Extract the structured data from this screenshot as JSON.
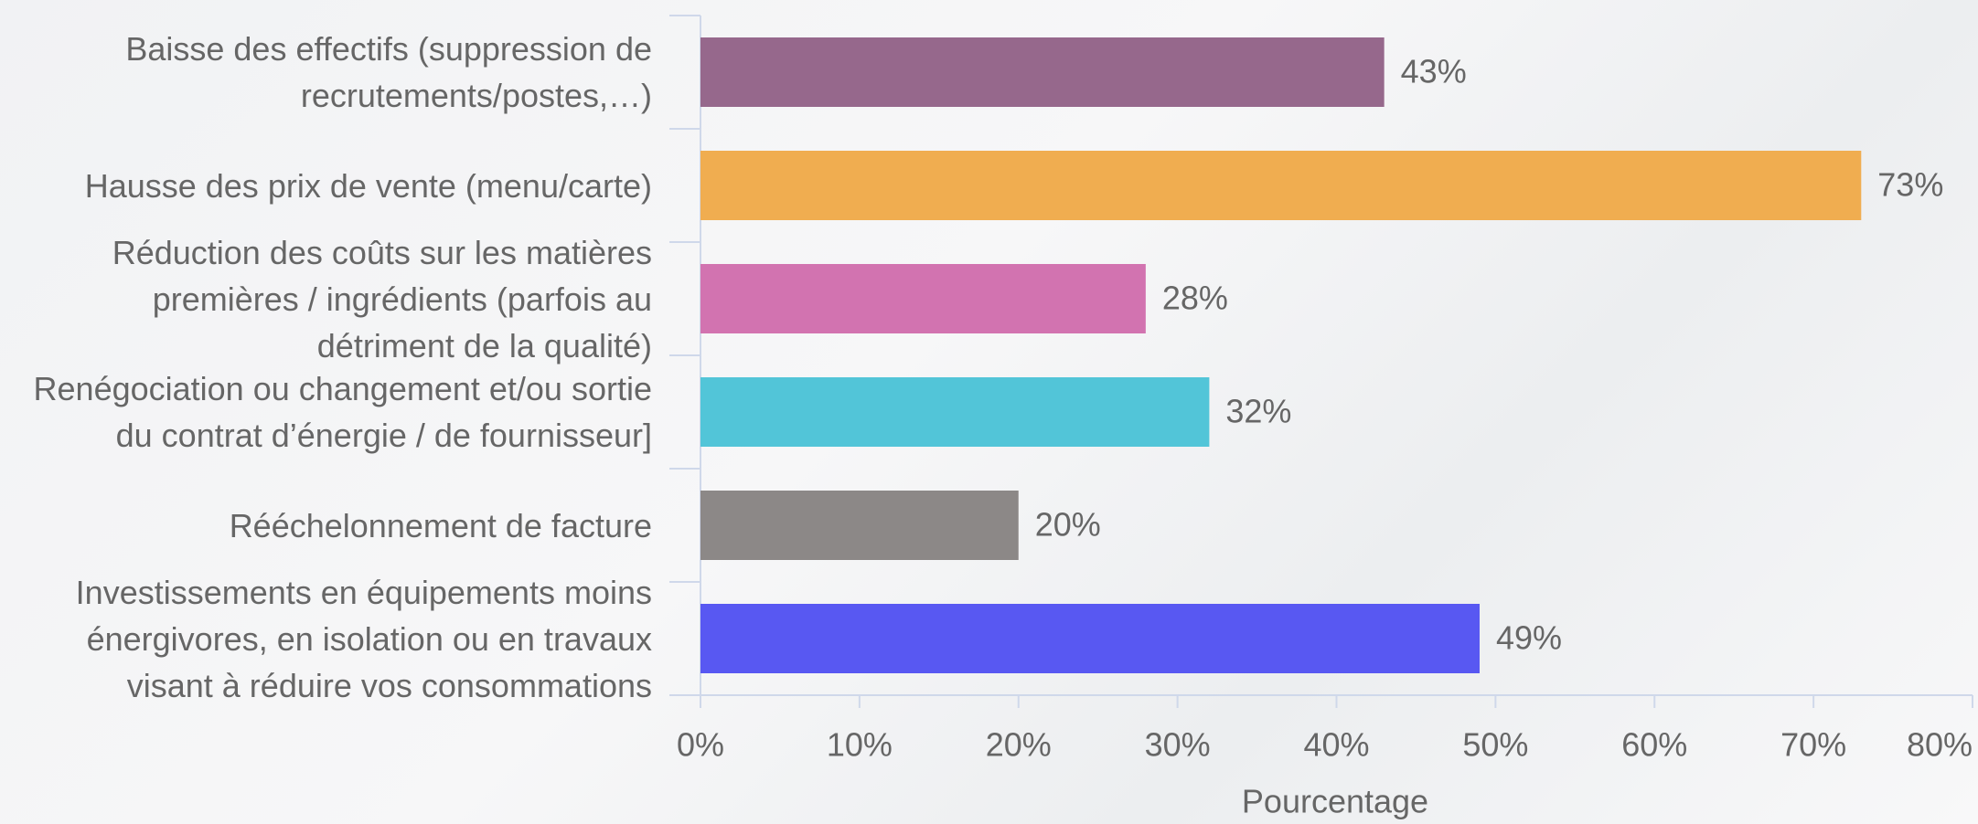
{
  "chart_data": {
    "type": "barh",
    "categories": [
      "Baisse des effectifs (suppression de recrutements/postes,…)",
      "Hausse des prix de vente (menu/carte)",
      "Réduction des coûts sur les matières premières / ingrédients (parfois au détriment de la qualité)",
      "Renégociation ou changement et/ou sortie du contrat d’énergie / de fournisseur]",
      "Rééchelonnement de facture",
      "Investissements en équipements moins énergivores, en isolation ou en travaux visant à réduire vos consommations"
    ],
    "values": [
      43,
      73,
      28,
      32,
      20,
      49
    ],
    "value_labels": [
      "43%",
      "73%",
      "28%",
      "32%",
      "20%",
      "49%"
    ],
    "colors": [
      "#96688c",
      "#f0ad50",
      "#d273b0",
      "#52c5d8",
      "#8c8887",
      "#5858f2"
    ],
    "xlabel": "Pourcentage",
    "xlim": [
      0,
      80
    ],
    "xticks": [
      {
        "value": 0,
        "label": "0%"
      },
      {
        "value": 10,
        "label": "10%"
      },
      {
        "value": 20,
        "label": "20%"
      },
      {
        "value": 30,
        "label": "30%"
      },
      {
        "value": 40,
        "label": "40%"
      },
      {
        "value": 50,
        "label": "50%"
      },
      {
        "value": 60,
        "label": "60%"
      },
      {
        "value": 70,
        "label": "70%"
      },
      {
        "value": 80,
        "label": "80%"
      }
    ]
  }
}
